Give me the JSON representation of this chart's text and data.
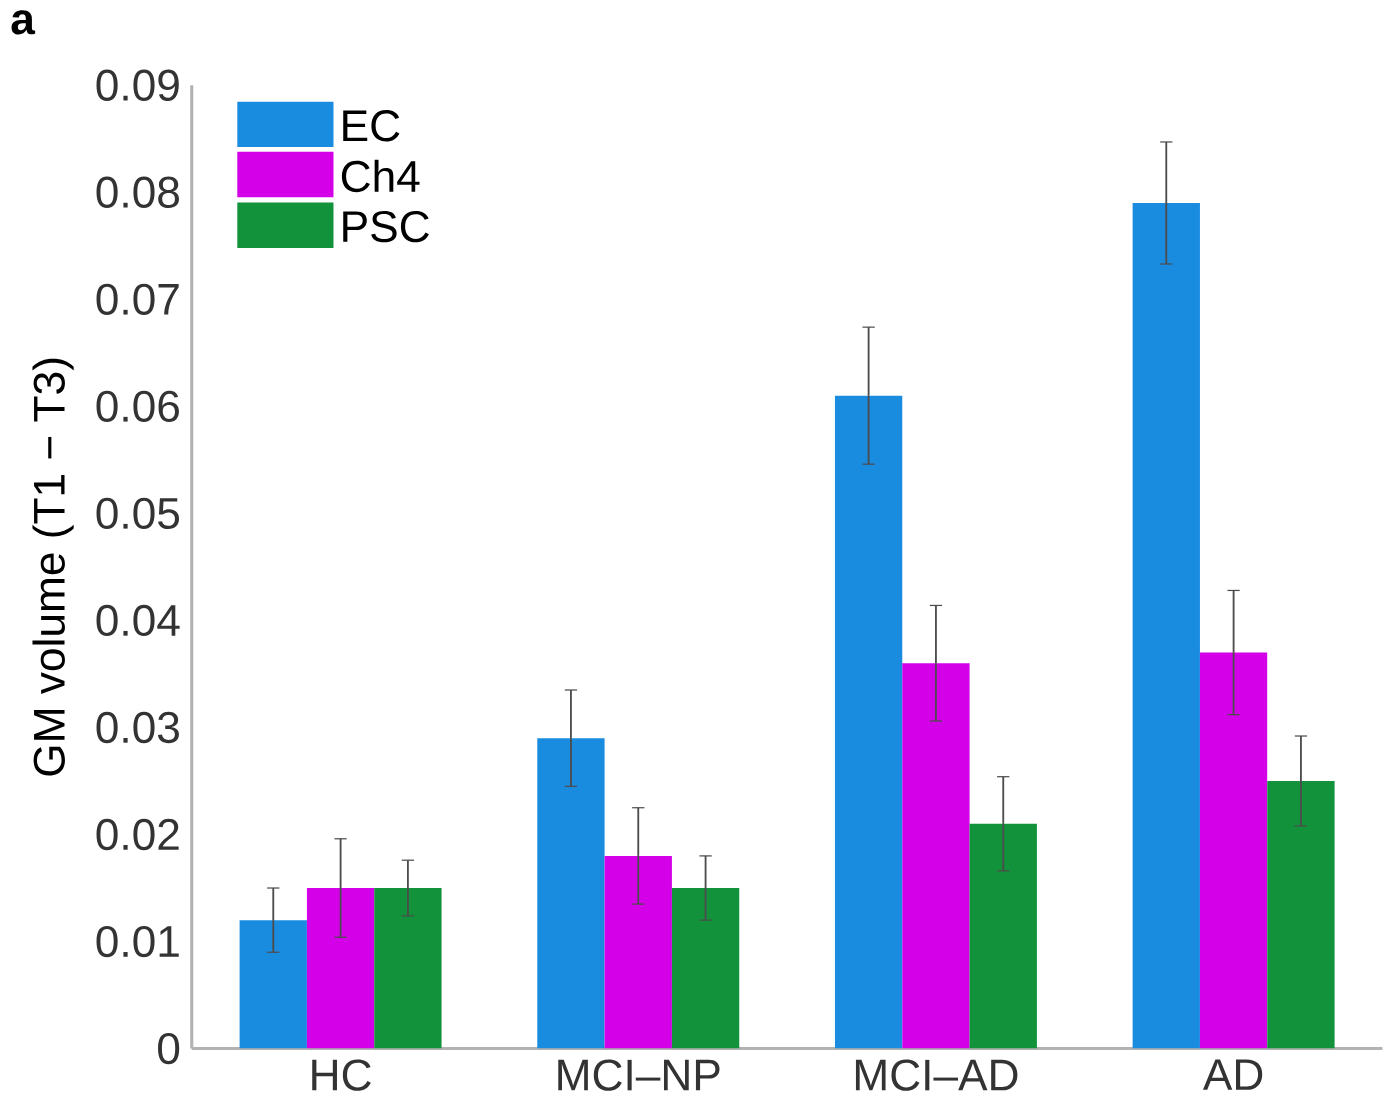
{
  "chart_data": {
    "type": "bar",
    "ylabel": "GM volume (T1 − T3)",
    "annotations": [
      "a"
    ],
    "categories": [
      "HC",
      "MCI–NP",
      "MCI–AD",
      "AD"
    ],
    "series": [
      {
        "name": "EC",
        "color": "#1a8ce0",
        "values": [
          0.012,
          0.029,
          0.061,
          0.079
        ],
        "errors": [
          0.003,
          0.0045,
          0.0064,
          0.0057
        ]
      },
      {
        "name": "Ch4",
        "color": "#d400e8",
        "values": [
          0.015,
          0.018,
          0.036,
          0.037
        ],
        "errors": [
          0.0046,
          0.0045,
          0.0054,
          0.0058
        ]
      },
      {
        "name": "PSC",
        "color": "#12923a",
        "values": [
          0.015,
          0.015,
          0.021,
          0.025
        ],
        "errors": [
          0.0026,
          0.003,
          0.0044,
          0.0042
        ]
      }
    ],
    "ylim": [
      0,
      0.09
    ],
    "yticks": [
      0,
      0.01,
      0.02,
      0.03,
      0.04,
      0.05,
      0.06,
      0.07,
      0.08,
      0.09
    ],
    "legend": "top left",
    "grid": false
  }
}
